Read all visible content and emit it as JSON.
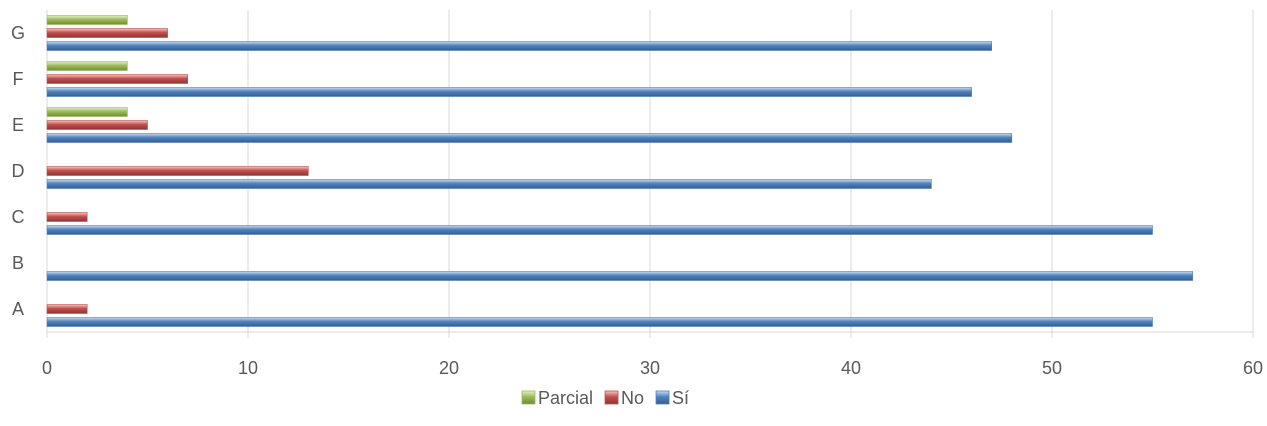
{
  "chart_data": {
    "type": "bar",
    "orientation": "horizontal",
    "title": "",
    "xlabel": "",
    "ylabel": "",
    "categories": [
      "A",
      "B",
      "C",
      "D",
      "E",
      "F",
      "G"
    ],
    "series": [
      {
        "name": "Parcial",
        "color": "#9bbb59",
        "values": [
          0,
          0,
          0,
          0,
          4,
          4,
          4
        ]
      },
      {
        "name": "No",
        "color": "#c0504d",
        "values": [
          2,
          0,
          2,
          13,
          5,
          7,
          6
        ]
      },
      {
        "name": "Sí",
        "color": "#4f81bd",
        "values": [
          55,
          57,
          55,
          44,
          48,
          46,
          47
        ]
      }
    ],
    "xlim": [
      0,
      60
    ],
    "xticks": [
      "0",
      "10",
      "20",
      "30",
      "40",
      "50",
      "60"
    ],
    "grid": true,
    "legend_position": "bottom"
  }
}
